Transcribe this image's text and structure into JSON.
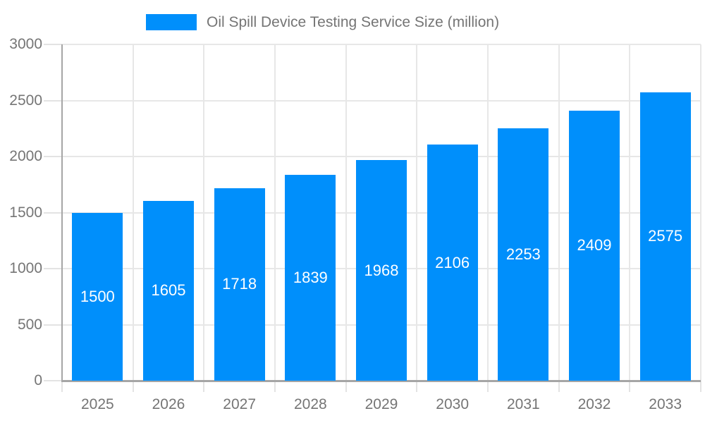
{
  "chart_data": {
    "type": "bar",
    "title": "Oil Spill Device Testing Service Size (million)",
    "legend": "Oil Spill Device Testing Service Size (million)",
    "legend_position": "top",
    "categories": [
      "2025",
      "2026",
      "2027",
      "2028",
      "2029",
      "2030",
      "2031",
      "2032",
      "2033"
    ],
    "series": [
      {
        "name": "Oil Spill Device Testing Service Size (million)",
        "values": [
          1500,
          1605,
          1718,
          1839,
          1968,
          2106,
          2253,
          2409,
          2575
        ]
      }
    ],
    "values": [
      1500,
      1605,
      1718,
      1839,
      1968,
      2106,
      2253,
      2409,
      2575
    ],
    "value_labels": [
      "1500",
      "1605",
      "1718",
      "1839",
      "1968",
      "2106",
      "2253",
      "2409",
      "2575"
    ],
    "xlabel": "",
    "ylabel": "",
    "ylim": [
      0,
      3000
    ],
    "yticks": [
      0,
      500,
      1000,
      1500,
      2000,
      2500,
      3000
    ],
    "grid": true,
    "colors": {
      "bar": "#008ffb",
      "grid": "#e7e7e7",
      "tick": "#e3e3e3",
      "axis": "#a6a6a6",
      "text": "#757575",
      "value_label": "#ffffff",
      "background": "#ffffff"
    }
  }
}
